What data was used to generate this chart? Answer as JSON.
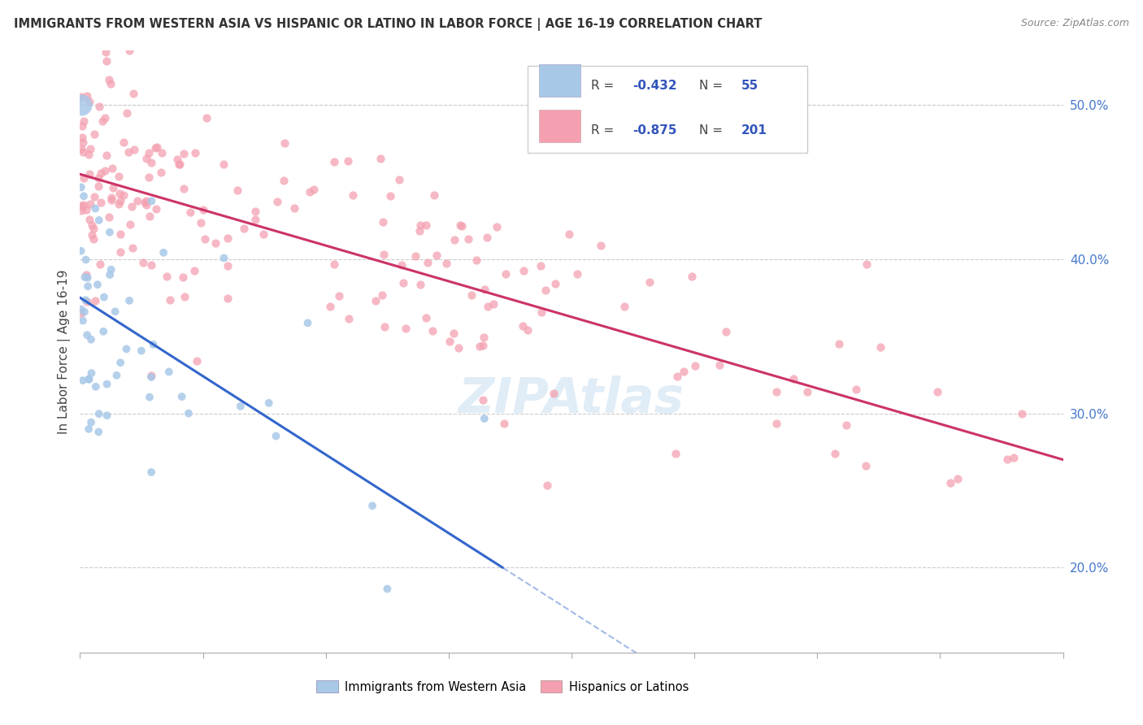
{
  "title": "IMMIGRANTS FROM WESTERN ASIA VS HISPANIC OR LATINO IN LABOR FORCE | AGE 16-19 CORRELATION CHART",
  "source": "Source: ZipAtlas.com",
  "ylabel": "In Labor Force | Age 16-19",
  "xlim": [
    0.0,
    1.0
  ],
  "ylim": [
    0.145,
    0.535
  ],
  "yticks": [
    0.2,
    0.3,
    0.4,
    0.5
  ],
  "ytick_labels": [
    "20.0%",
    "30.0%",
    "40.0%",
    "50.0%"
  ],
  "blue_R": -0.432,
  "blue_N": 55,
  "pink_R": -0.875,
  "pink_N": 201,
  "blue_color": "#a8c8e8",
  "pink_color": "#f4a0b0",
  "blue_line_color": "#3366cc",
  "pink_line_color": "#cc3366",
  "legend_label_blue": "Immigrants from Western Asia",
  "legend_label_pink": "Hispanics or Latinos",
  "blue_line_x0": 0.0,
  "blue_line_y0": 0.375,
  "blue_line_x1": 0.43,
  "blue_line_y1": 0.2,
  "pink_line_x0": 0.0,
  "pink_line_y0": 0.455,
  "pink_line_x1": 1.0,
  "pink_line_y1": 0.27
}
